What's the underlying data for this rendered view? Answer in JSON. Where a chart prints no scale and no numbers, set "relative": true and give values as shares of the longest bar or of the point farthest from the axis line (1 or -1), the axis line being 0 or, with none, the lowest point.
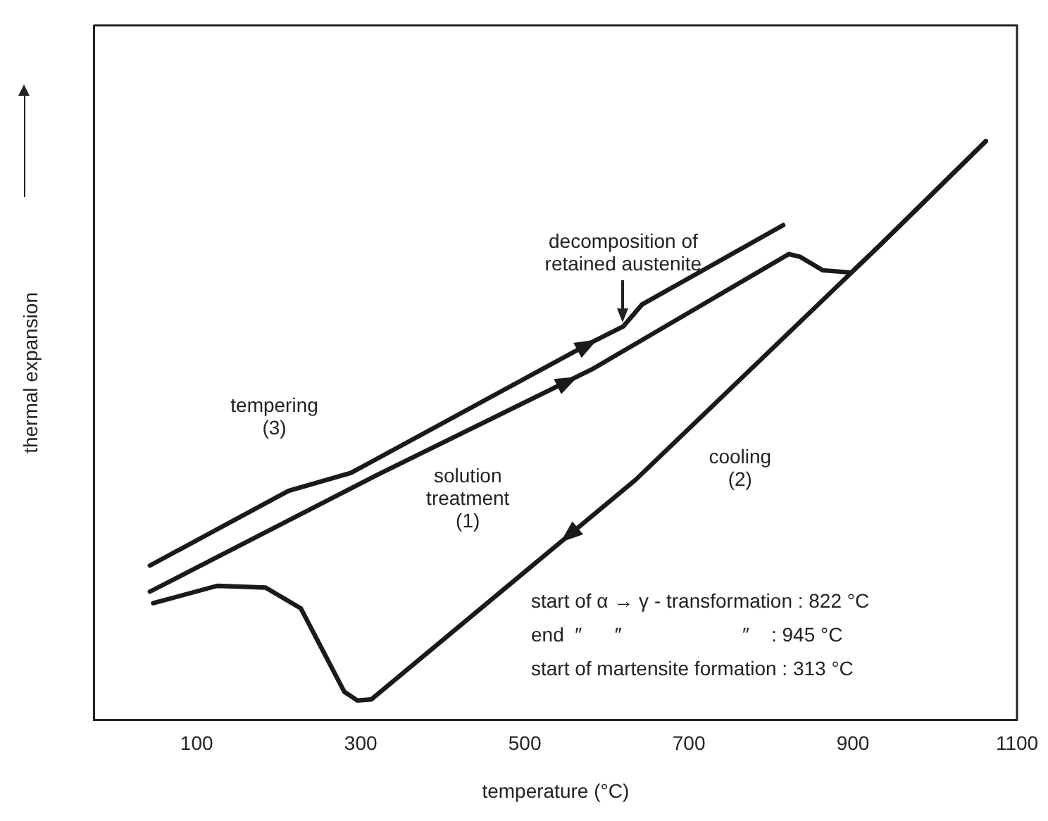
{
  "chart_data": {
    "type": "line",
    "xlabel": "temperature (°C)",
    "ylabel": "thermal expansion",
    "relative": true,
    "xlim": [
      -25,
      1100
    ],
    "xticks": [
      100,
      300,
      500,
      700,
      900,
      1100
    ],
    "grid": false,
    "legend": false,
    "marker": "none",
    "line_style": "solid",
    "series": [
      {
        "name": "tempering (3)",
        "color": "#1a1a1a",
        "x": [
          43,
          212,
          288,
          582,
          620,
          643,
          815
        ],
        "values": [
          0.267,
          0.396,
          0.427,
          0.653,
          0.68,
          0.718,
          0.855
        ]
      },
      {
        "name": "solution treatment (1)",
        "color": "#1a1a1a",
        "x": [
          43,
          322,
          582,
          822,
          836,
          863,
          898,
          932,
          1062
        ],
        "values": [
          0.222,
          0.425,
          0.606,
          0.805,
          0.8,
          0.777,
          0.773,
          0.819,
          1
        ]
      },
      {
        "name": "cooling (2)",
        "color": "#1a1a1a",
        "x": [
          1062,
          932,
          635,
          313,
          296,
          280,
          227,
          184,
          125,
          47
        ],
        "values": [
          1,
          0.819,
          0.415,
          0.036,
          0.034,
          0.049,
          0.193,
          0.229,
          0.232,
          0.202
        ]
      }
    ],
    "annotations": [
      {
        "text": "decomposition of retained austenite",
        "x": 620,
        "y": 0.68
      },
      "start of α → γ - transformation : 822 °C",
      "end  ″      ″                      ″    : 945 °C",
      "start of martensite formation : 313 °C"
    ]
  }
}
